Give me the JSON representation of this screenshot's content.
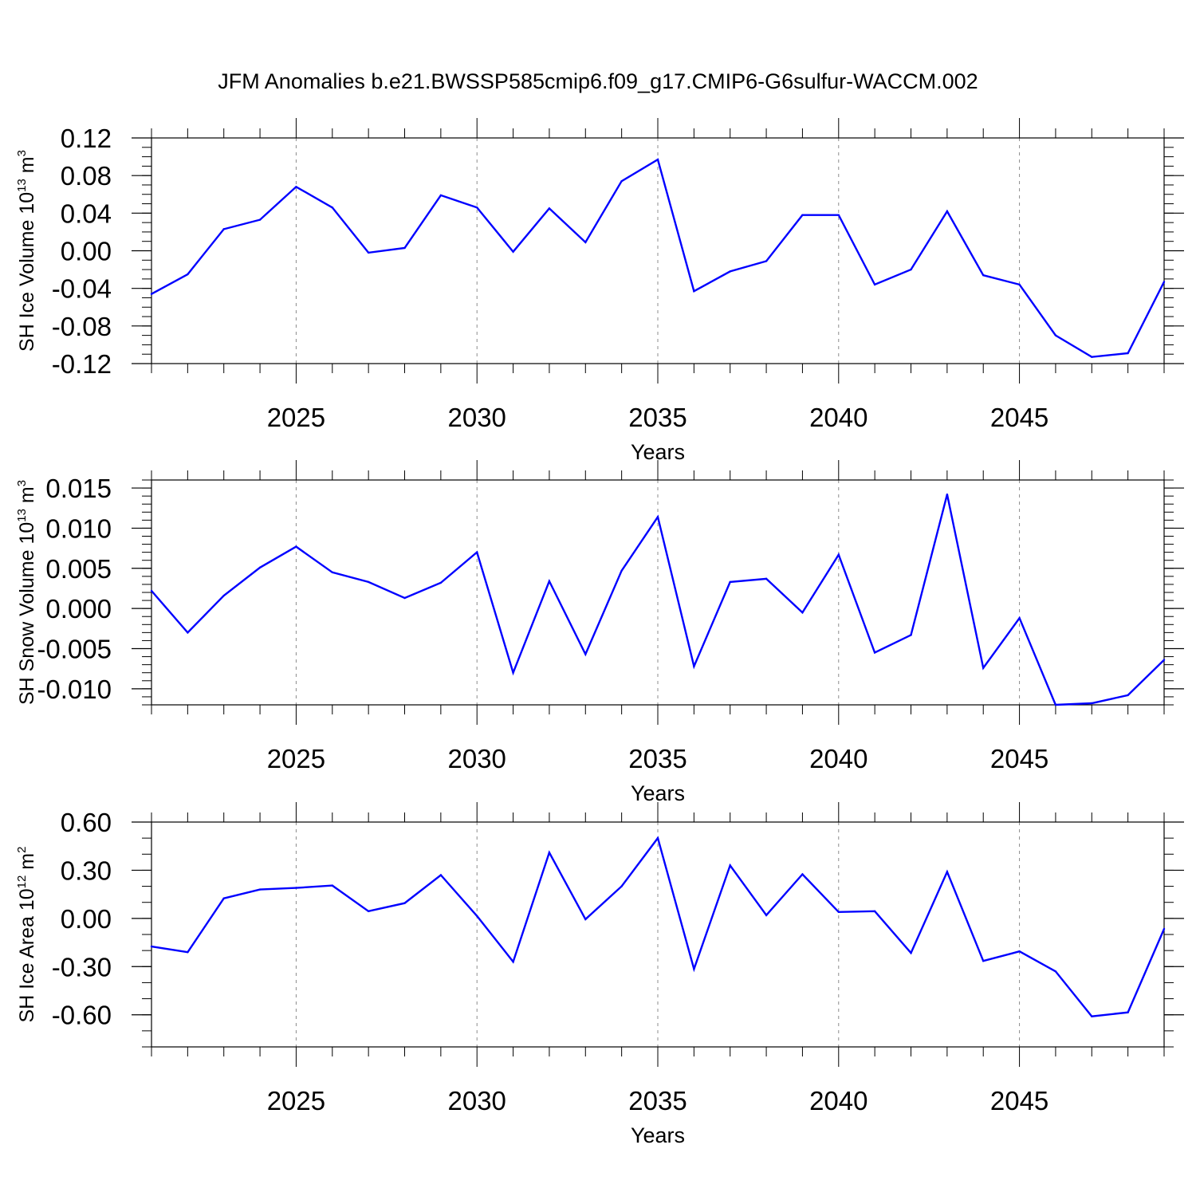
{
  "title": "JFM Anomalies b.e21.BWSSP585cmip6.f09_g17.CMIP6-G6sulfur-WACCM.002",
  "chart_data": [
    {
      "type": "line",
      "ylabel_main": "SH Ice Volume 10",
      "ylabel_exp": "13",
      "ylabel_unit": " m",
      "ylabel_unit_exp": "3",
      "xlabel": "Years",
      "xlim": [
        2021,
        2049
      ],
      "ylim": [
        -0.12,
        0.12
      ],
      "x_ticks": [
        2025,
        2030,
        2035,
        2040,
        2045
      ],
      "x_tick_labels": [
        "2025",
        "2030",
        "2035",
        "2040",
        "2045"
      ],
      "y_ticks": [
        0.12,
        0.08,
        0.04,
        0.0,
        -0.04,
        -0.08,
        -0.12
      ],
      "y_tick_labels": [
        "0.12",
        "0.08",
        "0.04",
        "0.00",
        "-0.04",
        "-0.08",
        "-0.12"
      ],
      "grid": "dashed vertical at labeled years",
      "x": [
        2021,
        2022,
        2023,
        2024,
        2025,
        2026,
        2027,
        2028,
        2029,
        2030,
        2031,
        2032,
        2033,
        2034,
        2035,
        2036,
        2037,
        2038,
        2039,
        2040,
        2041,
        2042,
        2043,
        2044,
        2045,
        2046,
        2047,
        2048,
        2049
      ],
      "series": [
        {
          "color": "#0000ff",
          "values": [
            -0.046,
            -0.025,
            0.023,
            0.033,
            0.068,
            0.046,
            -0.002,
            0.003,
            0.059,
            0.046,
            -0.001,
            0.045,
            0.009,
            0.074,
            0.097,
            -0.043,
            -0.022,
            -0.011,
            0.038,
            0.038,
            -0.036,
            -0.02,
            0.042,
            -0.026,
            -0.036,
            -0.09,
            -0.113,
            -0.109,
            -0.033
          ]
        }
      ]
    },
    {
      "type": "line",
      "ylabel_main": "SH Snow Volume 10",
      "ylabel_exp": "13",
      "ylabel_unit": " m",
      "ylabel_unit_exp": "3",
      "xlabel": "Years",
      "xlim": [
        2021,
        2049
      ],
      "ylim": [
        -0.012,
        0.016
      ],
      "x_ticks": [
        2025,
        2030,
        2035,
        2040,
        2045
      ],
      "x_tick_labels": [
        "2025",
        "2030",
        "2035",
        "2040",
        "2045"
      ],
      "y_ticks": [
        0.015,
        0.01,
        0.005,
        0.0,
        -0.005,
        -0.01
      ],
      "y_tick_labels": [
        "0.015",
        "0.010",
        "0.005",
        "0.000",
        "-0.005",
        "-0.010"
      ],
      "grid": "dashed vertical at labeled years",
      "x": [
        2021,
        2022,
        2023,
        2024,
        2025,
        2026,
        2027,
        2028,
        2029,
        2030,
        2031,
        2032,
        2033,
        2034,
        2035,
        2036,
        2037,
        2038,
        2039,
        2040,
        2041,
        2042,
        2043,
        2044,
        2045,
        2046,
        2047,
        2048,
        2049
      ],
      "series": [
        {
          "color": "#0000ff",
          "values": [
            0.0022,
            -0.003,
            0.0016,
            0.0051,
            0.0077,
            0.0045,
            0.0033,
            0.0013,
            0.0032,
            0.007,
            -0.008,
            0.0034,
            -0.0057,
            0.0047,
            0.0114,
            -0.0072,
            0.0033,
            0.0037,
            -0.0005,
            0.0067,
            -0.0055,
            -0.0033,
            0.0142,
            -0.0074,
            -0.0012,
            -0.012,
            -0.0118,
            -0.0108,
            -0.0064
          ]
        }
      ]
    },
    {
      "type": "line",
      "ylabel_main": "SH Ice Area 10",
      "ylabel_exp": "12",
      "ylabel_unit": " m",
      "ylabel_unit_exp": "2",
      "xlabel": "Years",
      "xlim": [
        2021,
        2049
      ],
      "ylim": [
        -0.8,
        0.6
      ],
      "x_ticks": [
        2025,
        2030,
        2035,
        2040,
        2045
      ],
      "x_tick_labels": [
        "2025",
        "2030",
        "2035",
        "2040",
        "2045"
      ],
      "y_ticks": [
        0.6,
        0.3,
        0.0,
        -0.3,
        -0.6
      ],
      "y_tick_labels": [
        "0.60",
        "0.30",
        "0.00",
        "-0.30",
        "-0.60"
      ],
      "grid": "dashed vertical at labeled years",
      "x": [
        2021,
        2022,
        2023,
        2024,
        2025,
        2026,
        2027,
        2028,
        2029,
        2030,
        2031,
        2032,
        2033,
        2034,
        2035,
        2036,
        2037,
        2038,
        2039,
        2040,
        2041,
        2042,
        2043,
        2044,
        2045,
        2046,
        2047,
        2048,
        2049
      ],
      "series": [
        {
          "color": "#0000ff",
          "values": [
            -0.175,
            -0.21,
            0.125,
            0.18,
            0.19,
            0.205,
            0.045,
            0.095,
            0.27,
            0.015,
            -0.27,
            0.41,
            -0.005,
            0.2,
            0.5,
            -0.315,
            0.33,
            0.02,
            0.275,
            0.04,
            0.045,
            -0.215,
            0.29,
            -0.265,
            -0.205,
            -0.33,
            -0.61,
            -0.585,
            -0.065
          ]
        }
      ]
    }
  ]
}
